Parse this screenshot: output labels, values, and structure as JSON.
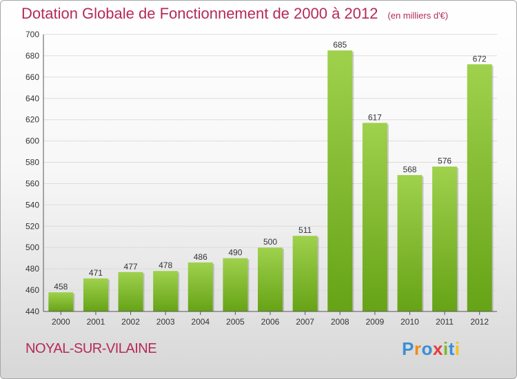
{
  "header": {
    "title": "Dotation Globale de Fonctionnement de 2000 à 2012",
    "unit": "(en milliers d'€)"
  },
  "footer": {
    "commune": "NOYAL-SUR-VILAINE",
    "brand": "Proxiti"
  },
  "colors": {
    "title": "#b5295a",
    "bar_top": "#9fd14d",
    "bar_bottom": "#66a316"
  },
  "chart_data": {
    "type": "bar",
    "title": "Dotation Globale de Fonctionnement de 2000 à 2012",
    "subtitle": "(en milliers d'€)",
    "xlabel": "",
    "ylabel": "",
    "categories": [
      "2000",
      "2001",
      "2002",
      "2003",
      "2004",
      "2005",
      "2006",
      "2007",
      "2008",
      "2009",
      "2010",
      "2011",
      "2012"
    ],
    "values": [
      458,
      471,
      477,
      478,
      486,
      490,
      500,
      511,
      685,
      617,
      568,
      576,
      672
    ],
    "ylim": [
      440,
      700
    ],
    "yticks": [
      440,
      460,
      480,
      500,
      520,
      540,
      560,
      580,
      600,
      620,
      640,
      660,
      680,
      700
    ],
    "grid": true,
    "data_labels": true
  }
}
